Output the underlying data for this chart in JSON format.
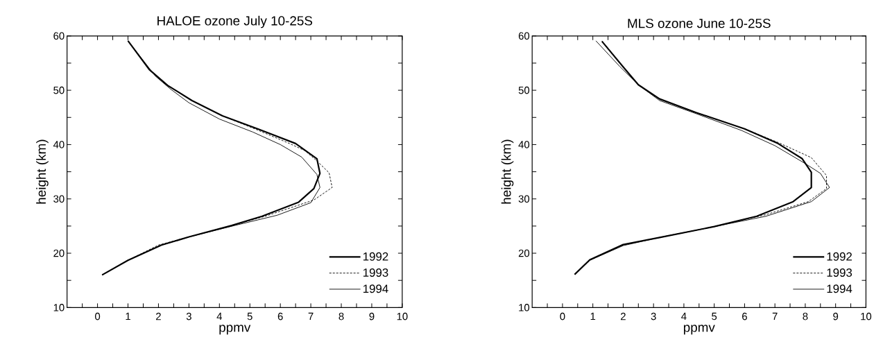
{
  "chart_data": [
    {
      "type": "line",
      "title": "HALOE ozone July 10-25S",
      "xlabel": "ppmv",
      "ylabel": "height (km)",
      "xlim": [
        -1,
        10
      ],
      "ylim": [
        10,
        60
      ],
      "xticks": [
        {
          "value": -0.5,
          "label": null
        },
        0,
        {
          "value": 0.5,
          "label": null
        },
        1,
        {
          "value": 1.5,
          "label": null
        },
        2,
        {
          "value": 2.5,
          "label": null
        },
        3,
        {
          "value": 3.5,
          "label": null
        },
        4,
        {
          "value": 4.5,
          "label": null
        },
        5,
        {
          "value": 5.5,
          "label": null
        },
        6,
        {
          "value": 6.5,
          "label": null
        },
        7,
        {
          "value": 7.5,
          "label": null
        },
        8,
        {
          "value": 8.5,
          "label": null
        },
        9,
        {
          "value": 9.5,
          "label": null
        },
        10
      ],
      "yticks": [
        10,
        {
          "value": 15,
          "label": null
        },
        20,
        {
          "value": 25,
          "label": null
        },
        30,
        {
          "value": 35,
          "label": null
        },
        40,
        {
          "value": 45,
          "label": null
        },
        50,
        {
          "value": 55,
          "label": null
        },
        60
      ],
      "legend": "bottom right",
      "series": [
        {
          "name": "1992",
          "color": "#000000",
          "line_style": "solid",
          "x": [
            1.0,
            1.7,
            2.3,
            3.1,
            4.1,
            5.3,
            6.5,
            7.2,
            7.3,
            7.1,
            6.6,
            5.4,
            4.4,
            3.0,
            2.1,
            1.0,
            0.15
          ],
          "values": [
            59.1,
            53.8,
            50.9,
            48.1,
            45.3,
            42.8,
            40.2,
            37.4,
            34.7,
            31.9,
            29.4,
            26.8,
            25.1,
            23.0,
            21.5,
            18.7,
            16.0
          ]
        },
        {
          "name": "1993",
          "color": "#000000",
          "line_style": "dashed",
          "x": [
            1.0,
            1.7,
            2.3,
            3.1,
            4.1,
            5.2,
            6.3,
            6.8,
            7.2,
            7.6,
            7.7,
            7.1,
            5.5,
            4.4,
            3.0,
            2.0,
            1.0,
            0.15
          ],
          "values": [
            59.1,
            53.8,
            50.9,
            48.1,
            45.3,
            42.8,
            40.2,
            38.9,
            37.0,
            34.8,
            32.1,
            29.8,
            26.8,
            25.1,
            23.0,
            21.5,
            18.7,
            16.0
          ]
        },
        {
          "name": "1994",
          "color": "#000000",
          "line_style": "solid",
          "x": [
            1.0,
            1.9,
            2.4,
            3.0,
            4.0,
            5.1,
            6.0,
            6.7,
            7.2,
            7.3,
            7.0,
            5.9,
            4.5,
            3.0,
            2.1,
            1.0,
            0.15
          ],
          "values": [
            59.1,
            52.6,
            50.2,
            47.7,
            44.7,
            42.3,
            40.0,
            37.7,
            34.5,
            32.1,
            29.3,
            27.0,
            25.1,
            23.0,
            21.5,
            18.7,
            16.0
          ]
        }
      ]
    },
    {
      "type": "line",
      "title": "MLS ozone June 10-25S",
      "xlabel": "ppmv",
      "ylabel": "height (km)",
      "xlim": [
        -1,
        10
      ],
      "ylim": [
        10,
        60
      ],
      "xticks": [
        {
          "value": -0.5,
          "label": null
        },
        0,
        {
          "value": 0.5,
          "label": null
        },
        1,
        {
          "value": 1.5,
          "label": null
        },
        2,
        {
          "value": 2.5,
          "label": null
        },
        3,
        {
          "value": 3.5,
          "label": null
        },
        4,
        {
          "value": 4.5,
          "label": null
        },
        5,
        {
          "value": 5.5,
          "label": null
        },
        6,
        {
          "value": 6.5,
          "label": null
        },
        7,
        {
          "value": 7.5,
          "label": null
        },
        8,
        {
          "value": 8.5,
          "label": null
        },
        9,
        {
          "value": 9.5,
          "label": null
        },
        10
      ],
      "yticks": [
        10,
        {
          "value": 15,
          "label": null
        },
        20,
        {
          "value": 25,
          "label": null
        },
        30,
        {
          "value": 35,
          "label": null
        },
        40,
        {
          "value": 45,
          "label": null
        },
        50,
        {
          "value": 55,
          "label": null
        },
        60
      ],
      "legend": "bottom right",
      "series": [
        {
          "name": "1992",
          "color": "#000000",
          "line_style": "solid",
          "x": [
            1.3,
            2.0,
            2.5,
            3.2,
            4.4,
            6.0,
            7.1,
            7.9,
            8.2,
            8.2,
            7.6,
            6.4,
            5.0,
            3.2,
            2.0,
            0.9,
            0.4
          ],
          "values": [
            59.0,
            54.3,
            51.0,
            48.4,
            45.9,
            42.9,
            40.2,
            37.4,
            34.9,
            32.1,
            29.5,
            26.8,
            24.9,
            22.9,
            21.6,
            18.8,
            16.1
          ]
        },
        {
          "name": "1993",
          "color": "#000000",
          "line_style": "dashed",
          "x": [
            1.3,
            2.0,
            2.5,
            3.2,
            4.4,
            6.0,
            7.1,
            8.2,
            8.7,
            8.7,
            8.1,
            6.7,
            5.0,
            3.2,
            2.0,
            0.9,
            0.4
          ],
          "values": [
            59.1,
            54.3,
            51.0,
            48.4,
            45.9,
            42.9,
            40.4,
            37.6,
            34.3,
            31.9,
            29.5,
            27.1,
            24.9,
            22.9,
            21.5,
            18.7,
            16.1
          ]
        },
        {
          "name": "1994",
          "color": "#000000",
          "line_style": "solid",
          "x": [
            1.1,
            1.9,
            2.5,
            3.2,
            4.4,
            5.9,
            7.0,
            8.0,
            8.5,
            8.8,
            8.2,
            6.7,
            5.0,
            3.2,
            2.0,
            0.9,
            0.4
          ],
          "values": [
            59.1,
            54.3,
            51.0,
            48.1,
            45.7,
            42.6,
            39.8,
            36.5,
            34.7,
            32.1,
            29.5,
            26.8,
            24.9,
            22.9,
            21.4,
            18.7,
            16.1
          ]
        }
      ]
    }
  ]
}
